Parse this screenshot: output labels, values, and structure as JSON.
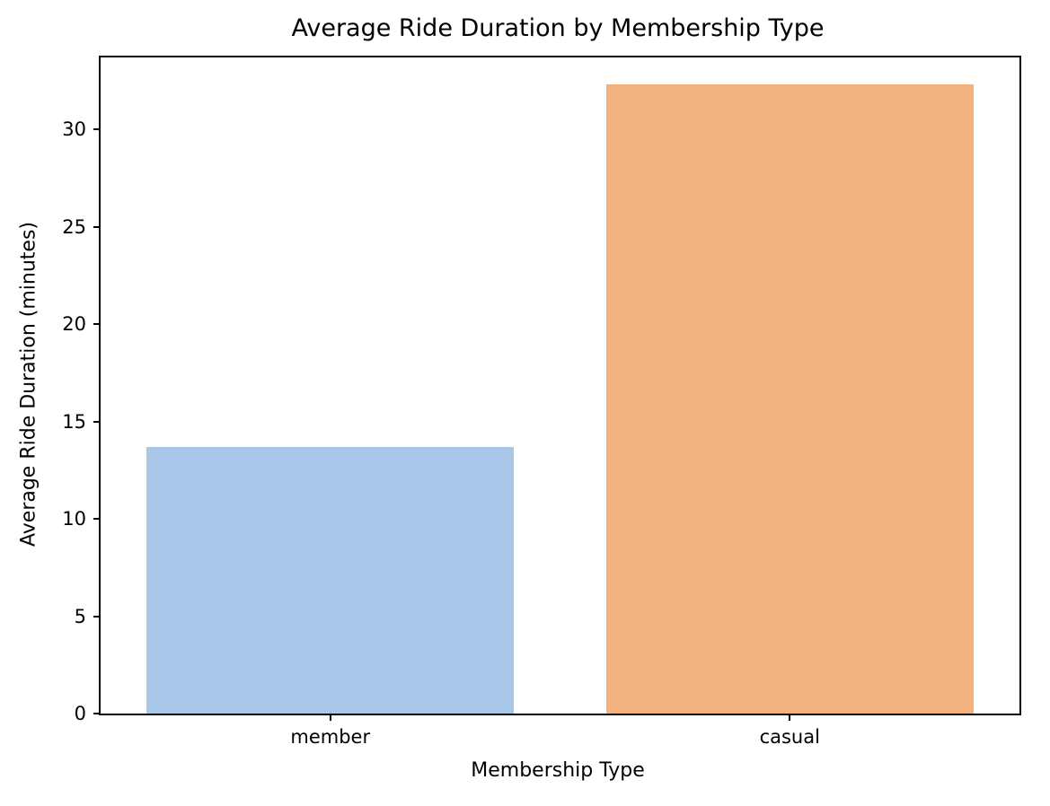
{
  "chart_data": {
    "type": "bar",
    "title": "Average Ride Duration by Membership Type",
    "xlabel": "Membership Type",
    "ylabel": "Average Ride Duration (minutes)",
    "categories": [
      "member",
      "casual"
    ],
    "values": [
      13.7,
      32.3
    ],
    "bar_colors": [
      "#a9c8e9",
      "#f2b27f"
    ],
    "yticks": [
      0,
      5,
      10,
      15,
      20,
      25,
      30
    ],
    "ylim": [
      0,
      33.7
    ],
    "bar_width_fraction": 0.8,
    "grid": false,
    "legend_position": "none",
    "background_color": "#ffffff",
    "spine_color": "#000000"
  }
}
